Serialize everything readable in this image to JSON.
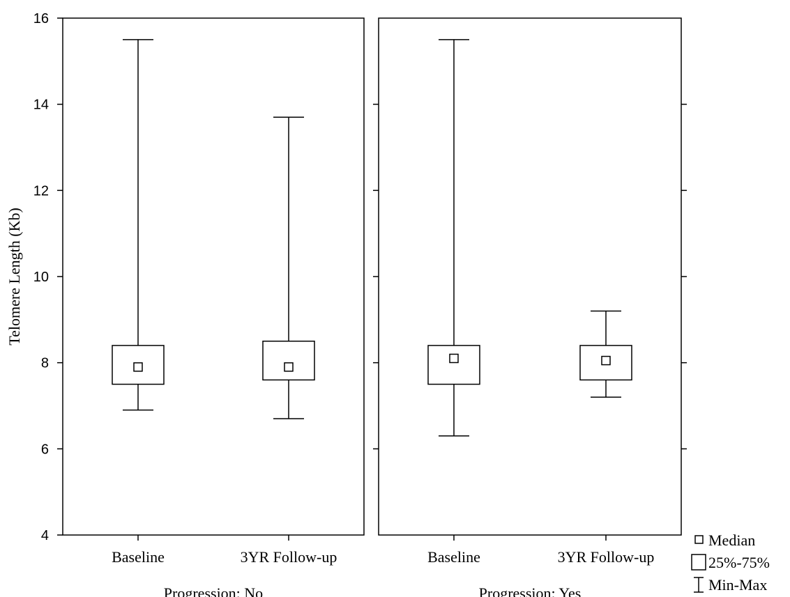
{
  "chart_data": {
    "type": "boxplot",
    "ylabel": "Telomere Length (Kb)",
    "ylim": [
      4,
      16
    ],
    "yticks": [
      4,
      6,
      8,
      10,
      12,
      14,
      16
    ],
    "categories": [
      "Baseline",
      "3YR Follow-up"
    ],
    "panels": [
      {
        "label": "Progression: No",
        "boxes": [
          {
            "category": "Baseline",
            "median": 7.9,
            "q1": 7.5,
            "q3": 8.4,
            "min": 6.9,
            "max": 15.5
          },
          {
            "category": "3YR Follow-up",
            "median": 7.9,
            "q1": 7.6,
            "q3": 8.5,
            "min": 6.7,
            "max": 13.7
          }
        ]
      },
      {
        "label": "Progression: Yes",
        "boxes": [
          {
            "category": "Baseline",
            "median": 8.1,
            "q1": 7.5,
            "q3": 8.4,
            "min": 6.3,
            "max": 15.5
          },
          {
            "category": "3YR Follow-up",
            "median": 8.05,
            "q1": 7.6,
            "q3": 8.4,
            "min": 7.2,
            "max": 9.2
          }
        ]
      }
    ],
    "legend": {
      "position": "bottom-right",
      "items": [
        "Median",
        "25%-75%",
        "Min-Max"
      ]
    }
  }
}
